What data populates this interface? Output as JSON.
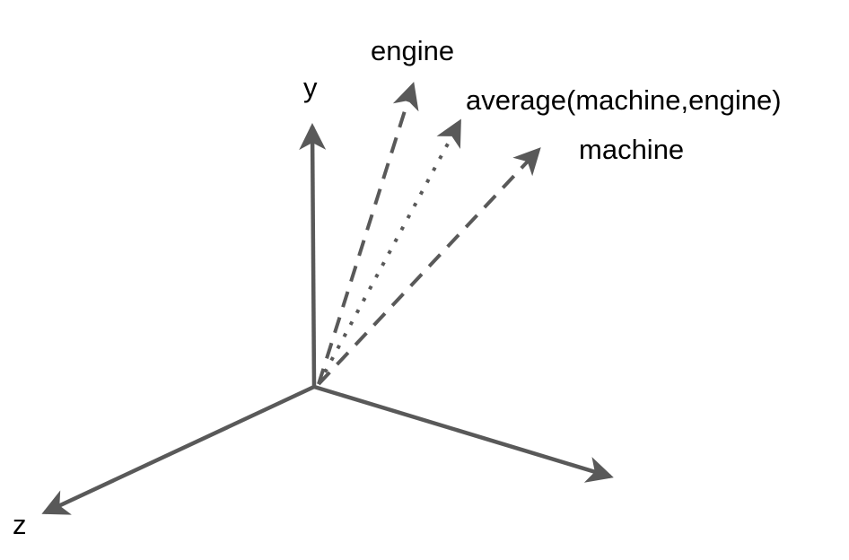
{
  "colors": {
    "stroke": "#595959",
    "text": "#000000",
    "background": "#ffffff"
  },
  "labels": {
    "y_axis": "y",
    "z_axis": "z",
    "engine": "engine",
    "average": "average(machine,engine)",
    "machine": "machine"
  },
  "vectors": [
    {
      "key": "engine",
      "style": "dashed"
    },
    {
      "key": "average",
      "style": "dotted"
    },
    {
      "key": "machine",
      "style": "dashed"
    }
  ]
}
